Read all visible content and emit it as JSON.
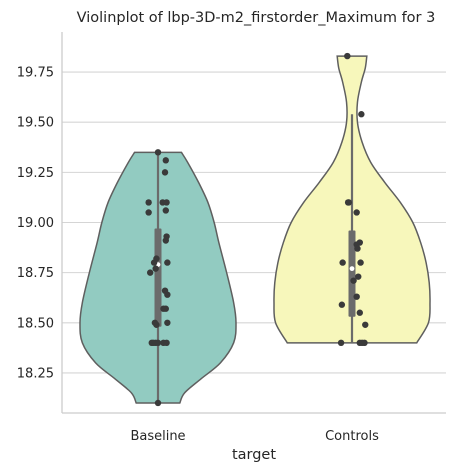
{
  "chart_data": {
    "type": "violin",
    "title": "Violinplot of lbp-3D-m2_firstorder_Maximum for 3",
    "xlabel": "target",
    "ylabel": "",
    "categories": [
      "Baseline",
      "Controls"
    ],
    "ylim": [
      18.05,
      19.95
    ],
    "yticks": [
      18.25,
      18.5,
      18.75,
      19.0,
      19.25,
      19.5,
      19.75
    ],
    "ytick_labels": [
      "18.25",
      "18.50",
      "18.75",
      "19.00",
      "19.25",
      "19.50",
      "19.75"
    ],
    "grid": "horizontal",
    "colors": {
      "Baseline": "#92cbc1",
      "Controls": "#f7f7bb",
      "outline": "#5f5f5f",
      "points": "#3a3a3a",
      "box": "#6b6b6b",
      "grid": "#d5d5d5",
      "axes": "#cccccc"
    },
    "series": [
      {
        "category": "Baseline",
        "min": 18.1,
        "max": 19.35,
        "q1": 18.48,
        "median": 18.79,
        "q3": 18.97,
        "width_profile": [
          [
            18.1,
            0.28
          ],
          [
            18.15,
            0.34
          ],
          [
            18.22,
            0.55
          ],
          [
            18.3,
            0.8
          ],
          [
            18.4,
            0.97
          ],
          [
            18.5,
            1.0
          ],
          [
            18.6,
            0.97
          ],
          [
            18.75,
            0.88
          ],
          [
            18.9,
            0.78
          ],
          [
            19.0,
            0.72
          ],
          [
            19.1,
            0.64
          ],
          [
            19.2,
            0.52
          ],
          [
            19.3,
            0.38
          ],
          [
            19.35,
            0.3
          ]
        ],
        "points": [
          [
            0.0,
            19.35
          ],
          [
            0.1,
            19.31
          ],
          [
            0.09,
            19.25
          ],
          [
            -0.12,
            19.1
          ],
          [
            0.06,
            19.1
          ],
          [
            0.11,
            19.1
          ],
          [
            -0.12,
            19.05
          ],
          [
            0.1,
            19.06
          ],
          [
            0.11,
            18.93
          ],
          [
            0.1,
            18.91
          ],
          [
            -0.05,
            18.8
          ],
          [
            -0.02,
            18.82
          ],
          [
            0.12,
            18.8
          ],
          [
            -0.1,
            18.75
          ],
          [
            -0.03,
            18.77
          ],
          [
            0.09,
            18.66
          ],
          [
            0.12,
            18.64
          ],
          [
            0.07,
            18.57
          ],
          [
            0.1,
            18.57
          ],
          [
            -0.04,
            18.5
          ],
          [
            -0.02,
            18.49
          ],
          [
            0.12,
            18.5
          ],
          [
            -0.08,
            18.4
          ],
          [
            -0.06,
            18.4
          ],
          [
            -0.03,
            18.4
          ],
          [
            0.0,
            18.4
          ],
          [
            0.07,
            18.4
          ],
          [
            0.11,
            18.4
          ],
          [
            0.0,
            18.1
          ]
        ]
      },
      {
        "category": "Controls",
        "min": 18.4,
        "max": 19.54,
        "q1": 18.53,
        "median": 18.77,
        "q3": 18.96,
        "width_profile": [
          [
            18.4,
            0.83
          ],
          [
            18.5,
            0.98
          ],
          [
            18.6,
            1.0
          ],
          [
            18.7,
            0.99
          ],
          [
            18.8,
            0.95
          ],
          [
            18.9,
            0.88
          ],
          [
            19.0,
            0.78
          ],
          [
            19.1,
            0.62
          ],
          [
            19.2,
            0.42
          ],
          [
            19.3,
            0.24
          ],
          [
            19.4,
            0.13
          ],
          [
            19.5,
            0.07
          ],
          [
            19.6,
            0.07
          ],
          [
            19.7,
            0.12
          ],
          [
            19.77,
            0.17
          ],
          [
            19.83,
            0.19
          ]
        ],
        "points": [
          [
            -0.06,
            19.83
          ],
          [
            0.12,
            19.54
          ],
          [
            -0.05,
            19.1
          ],
          [
            -0.04,
            19.1
          ],
          [
            0.06,
            19.05
          ],
          [
            0.1,
            18.9
          ],
          [
            0.06,
            18.89
          ],
          [
            0.07,
            18.87
          ],
          [
            -0.12,
            18.8
          ],
          [
            0.11,
            18.8
          ],
          [
            0.08,
            18.73
          ],
          [
            0.02,
            18.71
          ],
          [
            0.06,
            18.63
          ],
          [
            -0.13,
            18.59
          ],
          [
            0.1,
            18.55
          ],
          [
            0.17,
            18.49
          ],
          [
            -0.14,
            18.4
          ],
          [
            0.1,
            18.4
          ],
          [
            0.13,
            18.4
          ],
          [
            0.16,
            18.4
          ]
        ]
      }
    ]
  }
}
